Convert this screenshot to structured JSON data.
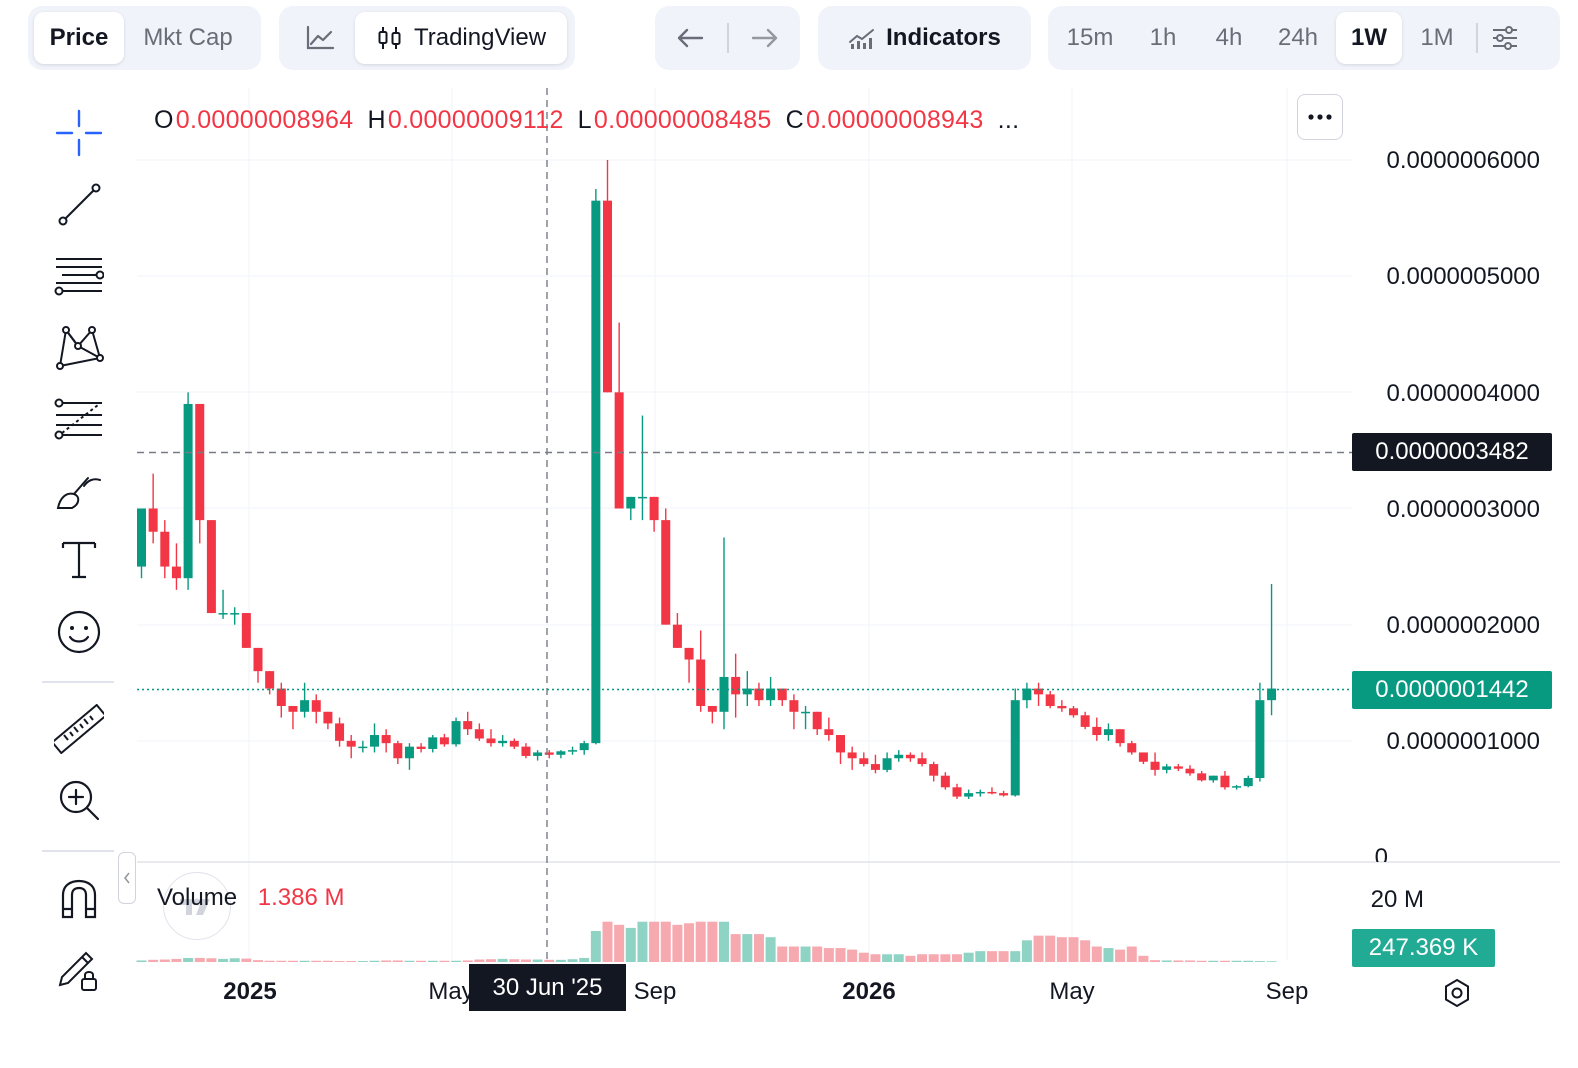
{
  "toolbar": {
    "price_tab": "Price",
    "mktcap_tab": "Mkt Cap",
    "tradingview_label": "TradingView",
    "indicators_label": "Indicators",
    "intervals": [
      "15m",
      "1h",
      "4h",
      "24h",
      "1W",
      "1M"
    ],
    "active_interval": "1W"
  },
  "legend": {
    "o_key": "O",
    "o_val": "0.00000008964",
    "h_key": "H",
    "h_val": "0.00000009112",
    "l_key": "L",
    "l_val": "0.00000008485",
    "c_key": "C",
    "c_val": "0.00000008943",
    "more": "..."
  },
  "price_axis": {
    "labels": [
      "0.0000006000",
      "0.0000005000",
      "0.0000004000",
      "0.0000003000",
      "0.0000002000",
      "0.0000001000",
      "0"
    ],
    "crosshair_tag": "0.0000003482",
    "last_price_tag": "0.0000001442"
  },
  "volume": {
    "label": "Volume",
    "value": "1.386 M",
    "axis_label": "20 M",
    "last_tag": "247.369 K"
  },
  "time_axis": {
    "labels": [
      "2025",
      "May",
      "Sep",
      "2026",
      "May",
      "Sep"
    ],
    "crosshair_date": "30 Jun '25"
  },
  "colors": {
    "up": "#089981",
    "down": "#f23645",
    "up_volume": "#8fd3c5",
    "down_volume": "#f7a9b0",
    "accent": "#2962ff"
  },
  "chart_data": {
    "type": "candlestick",
    "interval": "1W",
    "y_range": [
      0,
      6e-07
    ],
    "crosshair_price": 3.482e-07,
    "last_price": 1.442e-07,
    "candles_ohlc_e7": [
      [
        2.5,
        3.0,
        2.4,
        3.0
      ],
      [
        3.0,
        3.3,
        2.7,
        2.8
      ],
      [
        2.8,
        2.9,
        2.4,
        2.5
      ],
      [
        2.5,
        2.7,
        2.3,
        2.4
      ],
      [
        2.4,
        4.0,
        2.3,
        3.9
      ],
      [
        3.9,
        3.9,
        2.7,
        2.9
      ],
      [
        2.9,
        2.9,
        2.1,
        2.1
      ],
      [
        2.1,
        2.3,
        2.05,
        2.1
      ],
      [
        2.1,
        2.15,
        2.0,
        2.1
      ],
      [
        2.1,
        2.1,
        1.8,
        1.8
      ],
      [
        1.8,
        1.8,
        1.5,
        1.6
      ],
      [
        1.6,
        1.6,
        1.4,
        1.45
      ],
      [
        1.45,
        1.5,
        1.2,
        1.3
      ],
      [
        1.3,
        1.3,
        1.1,
        1.25
      ],
      [
        1.25,
        1.5,
        1.2,
        1.35
      ],
      [
        1.35,
        1.4,
        1.15,
        1.25
      ],
      [
        1.25,
        1.25,
        1.1,
        1.15
      ],
      [
        1.15,
        1.2,
        0.95,
        1.0
      ],
      [
        1.0,
        1.05,
        0.85,
        0.95
      ],
      [
        0.95,
        1.0,
        0.9,
        0.95
      ],
      [
        0.95,
        1.15,
        0.9,
        1.05
      ],
      [
        1.05,
        1.1,
        0.9,
        0.98
      ],
      [
        0.98,
        1.0,
        0.8,
        0.85
      ],
      [
        0.85,
        0.98,
        0.75,
        0.95
      ],
      [
        0.95,
        0.98,
        0.9,
        0.93
      ],
      [
        0.93,
        1.05,
        0.9,
        1.03
      ],
      [
        1.03,
        1.06,
        0.95,
        0.97
      ],
      [
        0.97,
        1.2,
        0.95,
        1.17
      ],
      [
        1.17,
        1.25,
        1.05,
        1.1
      ],
      [
        1.1,
        1.15,
        1.0,
        1.02
      ],
      [
        1.02,
        1.1,
        0.95,
        0.98
      ],
      [
        0.98,
        1.05,
        0.95,
        1.0
      ],
      [
        1.0,
        1.02,
        0.93,
        0.95
      ],
      [
        0.95,
        0.98,
        0.85,
        0.87
      ],
      [
        0.87,
        0.92,
        0.83,
        0.9
      ],
      [
        0.9,
        0.92,
        0.85,
        0.88
      ],
      [
        0.88,
        0.92,
        0.85,
        0.91
      ],
      [
        0.91,
        0.95,
        0.88,
        0.92
      ],
      [
        0.92,
        1.0,
        0.88,
        0.98
      ],
      [
        0.98,
        5.75,
        0.97,
        5.65
      ],
      [
        5.65,
        6.0,
        4.0,
        4.0
      ],
      [
        4.0,
        4.6,
        3.0,
        3.0
      ],
      [
        3.0,
        3.1,
        2.9,
        3.1
      ],
      [
        3.1,
        3.8,
        2.9,
        3.1
      ],
      [
        3.1,
        3.1,
        2.8,
        2.9
      ],
      [
        2.9,
        3.0,
        2.0,
        2.0
      ],
      [
        2.0,
        2.1,
        1.8,
        1.8
      ],
      [
        1.8,
        1.8,
        1.5,
        1.7
      ],
      [
        1.7,
        1.95,
        1.25,
        1.3
      ],
      [
        1.3,
        1.3,
        1.15,
        1.25
      ],
      [
        1.25,
        2.75,
        1.1,
        1.55
      ],
      [
        1.55,
        1.75,
        1.2,
        1.4
      ],
      [
        1.4,
        1.6,
        1.3,
        1.45
      ],
      [
        1.45,
        1.5,
        1.3,
        1.35
      ],
      [
        1.35,
        1.55,
        1.3,
        1.45
      ],
      [
        1.45,
        1.45,
        1.3,
        1.35
      ],
      [
        1.35,
        1.4,
        1.1,
        1.25
      ],
      [
        1.25,
        1.3,
        1.1,
        1.25
      ],
      [
        1.25,
        1.25,
        1.05,
        1.1
      ],
      [
        1.1,
        1.2,
        1.0,
        1.05
      ],
      [
        1.05,
        1.05,
        0.8,
        0.9
      ],
      [
        0.9,
        0.95,
        0.75,
        0.85
      ],
      [
        0.85,
        0.9,
        0.78,
        0.8
      ],
      [
        0.8,
        0.88,
        0.72,
        0.75
      ],
      [
        0.75,
        0.9,
        0.73,
        0.85
      ],
      [
        0.85,
        0.92,
        0.82,
        0.88
      ],
      [
        0.88,
        0.9,
        0.82,
        0.85
      ],
      [
        0.85,
        0.9,
        0.78,
        0.8
      ],
      [
        0.8,
        0.82,
        0.65,
        0.7
      ],
      [
        0.7,
        0.73,
        0.58,
        0.6
      ],
      [
        0.6,
        0.63,
        0.5,
        0.52
      ],
      [
        0.52,
        0.58,
        0.5,
        0.55
      ],
      [
        0.55,
        0.58,
        0.52,
        0.56
      ],
      [
        0.56,
        0.6,
        0.54,
        0.55
      ],
      [
        0.55,
        0.57,
        0.52,
        0.53
      ],
      [
        0.53,
        1.45,
        0.52,
        1.35
      ],
      [
        1.35,
        1.5,
        1.28,
        1.45
      ],
      [
        1.45,
        1.5,
        1.3,
        1.4
      ],
      [
        1.4,
        1.43,
        1.28,
        1.3
      ],
      [
        1.3,
        1.35,
        1.25,
        1.28
      ],
      [
        1.28,
        1.3,
        1.2,
        1.22
      ],
      [
        1.22,
        1.25,
        1.1,
        1.12
      ],
      [
        1.12,
        1.2,
        1.0,
        1.05
      ],
      [
        1.05,
        1.15,
        1.0,
        1.1
      ],
      [
        1.1,
        1.1,
        0.95,
        0.98
      ],
      [
        0.98,
        1.0,
        0.88,
        0.9
      ],
      [
        0.9,
        0.9,
        0.8,
        0.82
      ],
      [
        0.82,
        0.9,
        0.7,
        0.75
      ],
      [
        0.75,
        0.8,
        0.72,
        0.78
      ],
      [
        0.78,
        0.8,
        0.74,
        0.76
      ],
      [
        0.76,
        0.79,
        0.7,
        0.72
      ],
      [
        0.72,
        0.74,
        0.65,
        0.66
      ],
      [
        0.66,
        0.7,
        0.64,
        0.7
      ],
      [
        0.7,
        0.74,
        0.58,
        0.6
      ],
      [
        0.6,
        0.62,
        0.58,
        0.61
      ],
      [
        0.61,
        0.7,
        0.6,
        0.68
      ],
      [
        0.68,
        1.5,
        0.65,
        1.35
      ],
      [
        1.35,
        2.35,
        1.22,
        1.45
      ]
    ],
    "volume_m": [
      0.5,
      0.7,
      0.8,
      1.0,
      1.3,
      1.3,
      1.2,
      1.0,
      1.2,
      1.1,
      0.6,
      0.4,
      0.4,
      0.4,
      0.4,
      0.4,
      0.4,
      0.3,
      0.3,
      0.3,
      0.4,
      0.5,
      0.5,
      0.4,
      0.4,
      0.4,
      0.4,
      0.4,
      0.5,
      0.8,
      0.9,
      1.0,
      0.9,
      0.8,
      0.8,
      0.7,
      0.7,
      0.9,
      1.3,
      10.0,
      13.0,
      12.0,
      11.0,
      13.0,
      13.0,
      13.0,
      12.0,
      12.5,
      13.0,
      13.0,
      13.0,
      9.0,
      9.0,
      9.0,
      8.0,
      5.0,
      5.0,
      5.0,
      5.0,
      4.5,
      4.5,
      4.0,
      3.0,
      2.5,
      2.5,
      2.5,
      2.0,
      2.5,
      2.5,
      2.5,
      2.5,
      3.0,
      3.5,
      3.5,
      3.5,
      3.5,
      7.0,
      8.5,
      8.5,
      8.0,
      8.0,
      7.0,
      5.0,
      4.5,
      4.0,
      5.0,
      2.0,
      0.6,
      0.5,
      0.5,
      0.5,
      0.4,
      0.4,
      0.4,
      0.4,
      0.4,
      0.3,
      0.25
    ],
    "volume_axis_max_m": 20
  }
}
